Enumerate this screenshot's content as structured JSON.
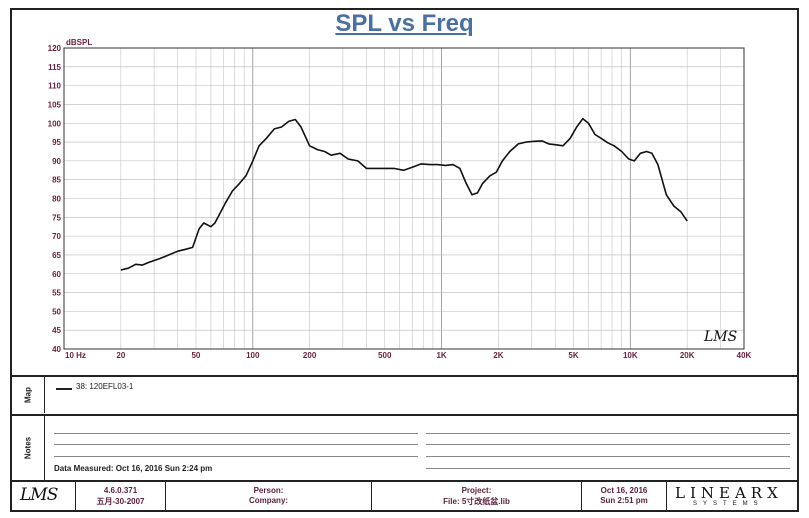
{
  "chart_data": {
    "type": "line",
    "title": "SPL vs Freq",
    "ylabel": "dBSPL",
    "xscale": "log",
    "xlim": [
      10,
      40000
    ],
    "ylim": [
      40,
      120
    ],
    "y_ticks": [
      40,
      45,
      50,
      55,
      60,
      65,
      70,
      75,
      80,
      85,
      90,
      95,
      100,
      105,
      110,
      115,
      120
    ],
    "x_ticks": [
      {
        "v": 10,
        "label": "10  Hz"
      },
      {
        "v": 20,
        "label": "20"
      },
      {
        "v": 50,
        "label": "50"
      },
      {
        "v": 100,
        "label": "100"
      },
      {
        "v": 200,
        "label": "200"
      },
      {
        "v": 500,
        "label": "500"
      },
      {
        "v": 1000,
        "label": "1K"
      },
      {
        "v": 2000,
        "label": "2K"
      },
      {
        "v": 5000,
        "label": "5K"
      },
      {
        "v": 10000,
        "label": "10K"
      },
      {
        "v": 20000,
        "label": "20K"
      },
      {
        "v": 40000,
        "label": "40K"
      }
    ],
    "grid": true,
    "series": [
      {
        "name": "38: 120EFL03-1",
        "color": "#111111",
        "points": [
          [
            20,
            61
          ],
          [
            22,
            61.5
          ],
          [
            24,
            62.5
          ],
          [
            26,
            62.3
          ],
          [
            28,
            63
          ],
          [
            32,
            64
          ],
          [
            36,
            65
          ],
          [
            40,
            66
          ],
          [
            44,
            66.5
          ],
          [
            48,
            67
          ],
          [
            52,
            72
          ],
          [
            55,
            73.5
          ],
          [
            60,
            72.5
          ],
          [
            63,
            73.5
          ],
          [
            67,
            76
          ],
          [
            72,
            79
          ],
          [
            78,
            82
          ],
          [
            85,
            84
          ],
          [
            92,
            86
          ],
          [
            100,
            90
          ],
          [
            108,
            94
          ],
          [
            118,
            96
          ],
          [
            130,
            98.5
          ],
          [
            142,
            99
          ],
          [
            155,
            100.5
          ],
          [
            168,
            101
          ],
          [
            180,
            99
          ],
          [
            200,
            94
          ],
          [
            220,
            93
          ],
          [
            240,
            92.5
          ],
          [
            260,
            91.5
          ],
          [
            290,
            92
          ],
          [
            320,
            90.5
          ],
          [
            360,
            90
          ],
          [
            400,
            88
          ],
          [
            450,
            88
          ],
          [
            500,
            88
          ],
          [
            560,
            88
          ],
          [
            630,
            87.5
          ],
          [
            700,
            88.3
          ],
          [
            780,
            89.2
          ],
          [
            870,
            89
          ],
          [
            950,
            89
          ],
          [
            1050,
            88.8
          ],
          [
            1150,
            89
          ],
          [
            1250,
            88
          ],
          [
            1350,
            84
          ],
          [
            1450,
            81
          ],
          [
            1550,
            81.5
          ],
          [
            1650,
            84
          ],
          [
            1800,
            86
          ],
          [
            1950,
            87
          ],
          [
            2100,
            90
          ],
          [
            2300,
            92.5
          ],
          [
            2550,
            94.5
          ],
          [
            2800,
            95
          ],
          [
            3100,
            95.2
          ],
          [
            3400,
            95.3
          ],
          [
            3700,
            94.5
          ],
          [
            4000,
            94.3
          ],
          [
            4400,
            94
          ],
          [
            4800,
            96
          ],
          [
            5200,
            99
          ],
          [
            5600,
            101.2
          ],
          [
            6000,
            100
          ],
          [
            6500,
            97
          ],
          [
            7000,
            96
          ],
          [
            7600,
            94.8
          ],
          [
            8200,
            94
          ],
          [
            9000,
            92.5
          ],
          [
            9800,
            90.5
          ],
          [
            10500,
            90
          ],
          [
            11300,
            92
          ],
          [
            12200,
            92.5
          ],
          [
            13000,
            92
          ],
          [
            14000,
            89
          ],
          [
            15500,
            81
          ],
          [
            17000,
            78
          ],
          [
            18500,
            76.5
          ],
          [
            20000,
            74
          ]
        ]
      }
    ],
    "annotation": "LMS"
  },
  "legend": {
    "entry": "38: 120EFL03-1"
  },
  "map_label": "Map",
  "notes_label": "Notes",
  "notes": {
    "date_measured": "Data Measured: Oct 16, 2016  Sun  2:24 pm"
  },
  "footer": {
    "logo": "LMS",
    "version": "4.6.0.371",
    "version_date": "五月-30-2007",
    "person": "Person:",
    "company": "Company:",
    "project": "Project:",
    "file": "File: 5寸改纸盆.lib",
    "date": "Oct 16, 2016",
    "time": "Sun  2:51 pm",
    "brand": "LINEARX",
    "brand_sub": "SYSTEMS"
  }
}
